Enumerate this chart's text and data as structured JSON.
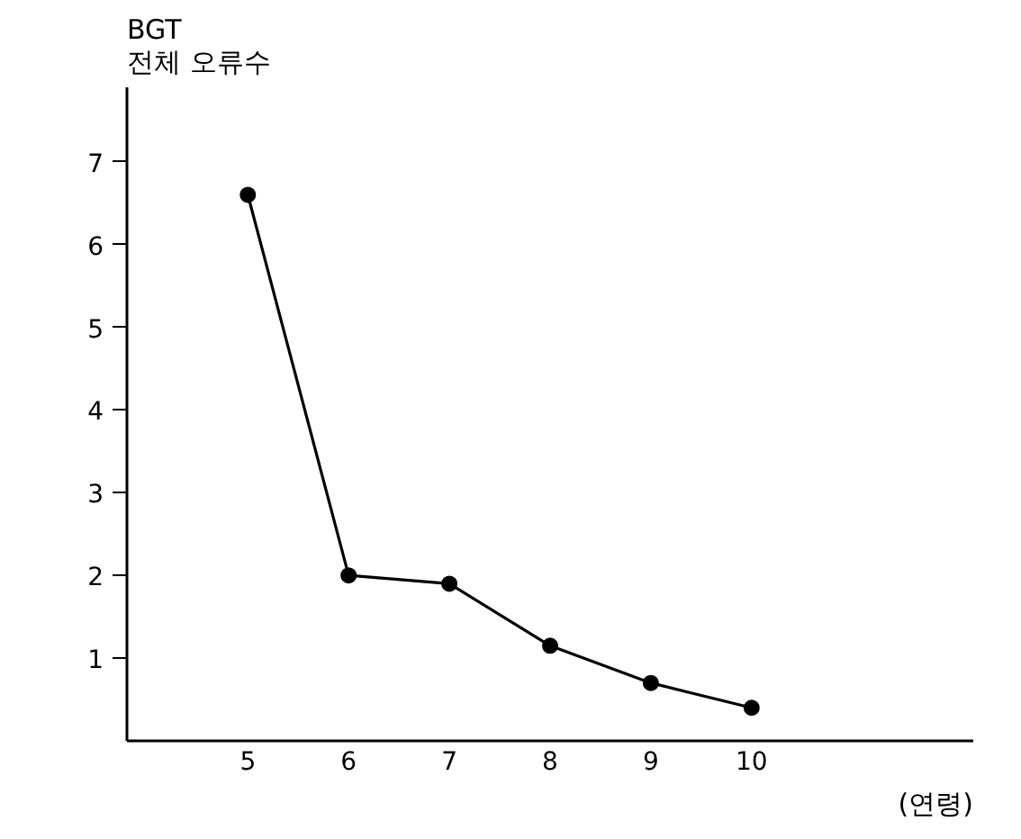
{
  "chart_data": {
    "type": "line",
    "ylabel": "BGT\n전체 오류수",
    "xlabel": "(연령)",
    "x": [
      5,
      6,
      7,
      8,
      9,
      10
    ],
    "values": [
      6.6,
      2.0,
      1.9,
      1.15,
      0.7,
      0.4
    ],
    "color": "#000000",
    "marker": "circle",
    "line_style": "solid",
    "grid": false,
    "xlim": [
      3.8,
      12.2
    ],
    "ylim": [
      0,
      7.9
    ],
    "xticks": [
      5,
      6,
      7,
      8,
      9,
      10
    ],
    "yticks": [
      1,
      2,
      3,
      4,
      5,
      6,
      7
    ]
  }
}
